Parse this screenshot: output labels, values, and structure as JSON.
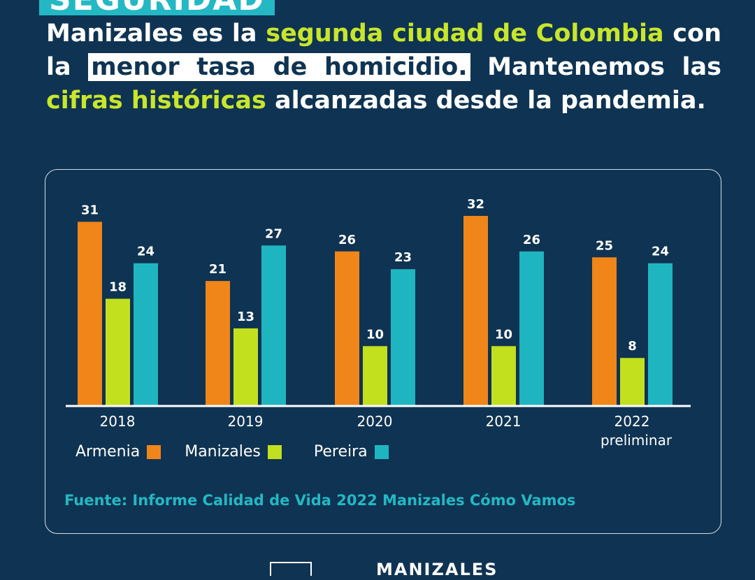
{
  "tag_label": "SEGURIDAD",
  "headline": {
    "p1": "Manizales es la ",
    "p2": "segunda ciudad de Colombia",
    "p3": " con la ",
    "p4": "menor tasa de homicidio.",
    "p5": " Mantenemos las ",
    "p6": "cifras históricas",
    "p7": " alcanzadas desde la pandemia."
  },
  "chart_data": {
    "type": "bar",
    "categories": [
      "2018",
      "2019",
      "2020",
      "2021",
      "2022"
    ],
    "category_sublabels": [
      "",
      "",
      "",
      "",
      "preliminar"
    ],
    "series": [
      {
        "name": "Armenia",
        "color": "#f08519",
        "values": [
          31,
          21,
          26,
          32,
          25
        ]
      },
      {
        "name": "Manizales",
        "color": "#c2e01e",
        "values": [
          18,
          13,
          10,
          10,
          8
        ]
      },
      {
        "name": "Pereira",
        "color": "#1fb5c0",
        "values": [
          24,
          27,
          23,
          26,
          24
        ]
      }
    ],
    "ylim": [
      0,
      32
    ],
    "grid": false,
    "legend_position": "bottom-left"
  },
  "source": "Fuente: Informe Calidad de Vida 2022 Manizales Cómo Vamos",
  "footer_text": "MANIZALES"
}
